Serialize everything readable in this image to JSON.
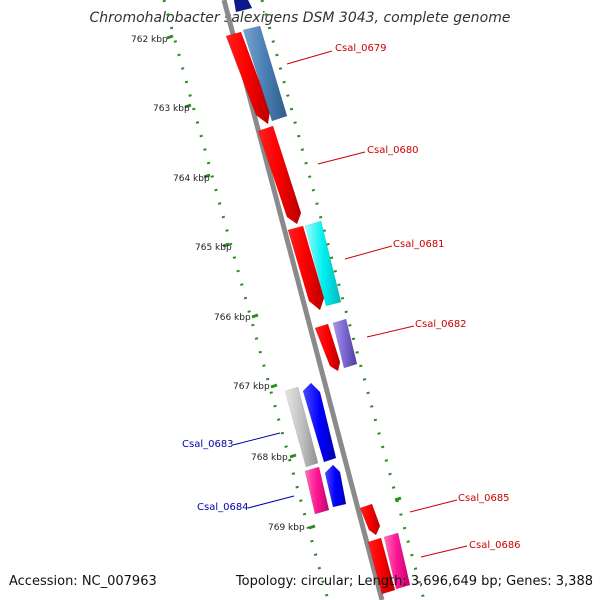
{
  "title": "Chromohalobacter salexigens DSM 3043, complete genome",
  "footer": {
    "accession": "Accession: NC_007963",
    "stats": "Topology: circular; Length: 3,696,649 bp; Genes: 3,388"
  },
  "scale": {
    "ticks": [
      "762 kbp",
      "763 kbp",
      "764 kbp",
      "765 kbp",
      "766 kbp",
      "767 kbp",
      "768 kbp",
      "769 kbp"
    ]
  },
  "colors": {
    "backbone": "#8a8a8a",
    "tick_dots": "#2e8b22",
    "label_red": "#cc0000",
    "label_blue": "#0000aa"
  },
  "genes": [
    {
      "label": "Csal_0679",
      "color": "#cc0000"
    },
    {
      "label": "Csal_0680",
      "color": "#cc0000"
    },
    {
      "label": "Csal_0681",
      "color": "#cc0000"
    },
    {
      "label": "Csal_0682",
      "color": "#cc0000"
    },
    {
      "label": "Csal_0683",
      "color": "#0000aa"
    },
    {
      "label": "Csal_0684",
      "color": "#0000aa"
    },
    {
      "label": "Csal_0685",
      "color": "#cc0000"
    },
    {
      "label": "Csal_0686",
      "color": "#cc0000"
    }
  ]
}
